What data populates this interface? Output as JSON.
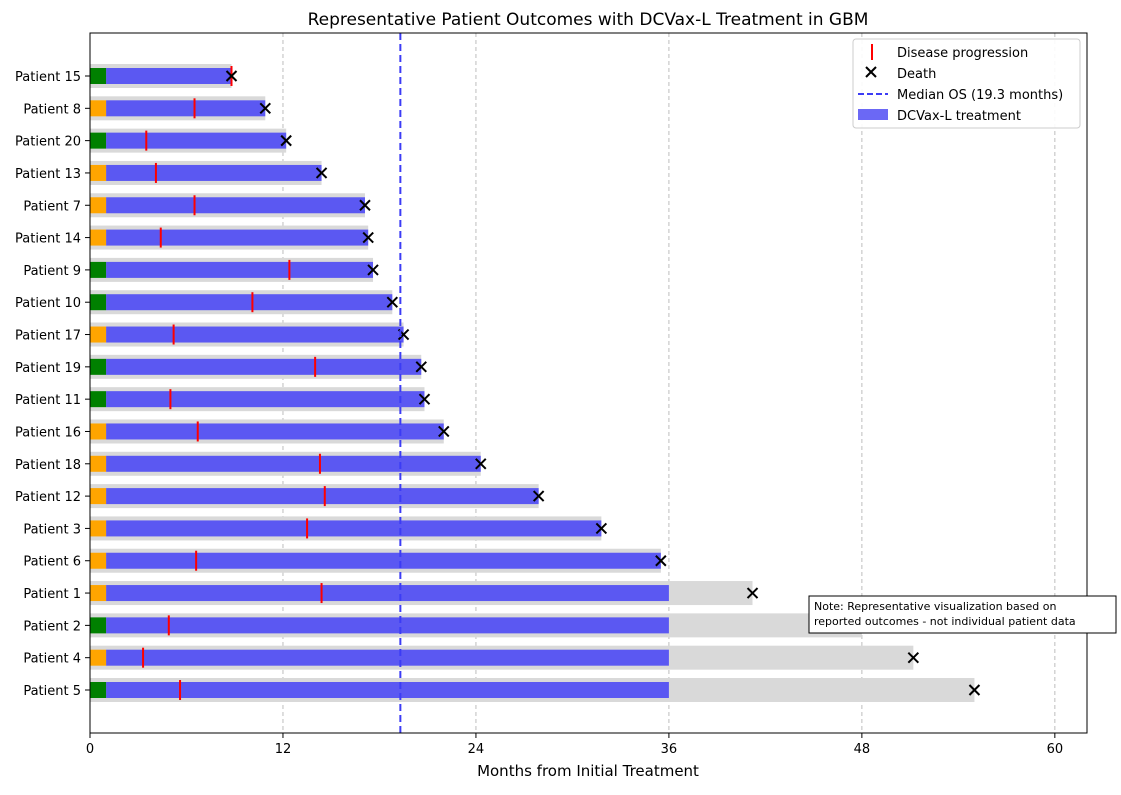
{
  "chart_data": {
    "type": "bar",
    "orientation": "horizontal",
    "title": "Representative Patient Outcomes with DCVax-L Treatment in GBM",
    "xlabel": "Months from Initial Treatment",
    "ylabel": "",
    "xlim": [
      0,
      62
    ],
    "xticks": [
      0,
      12,
      24,
      36,
      48,
      60
    ],
    "grid": "x-dashed",
    "legend_position": "top-right",
    "legend": {
      "progression": "Disease progression",
      "death": "Death",
      "median": "Median OS (19.3 months)",
      "treatment": "DCVax-L treatment"
    },
    "median_os": 19.3,
    "treatment_cap": 36,
    "initial_marker_length": 1,
    "colors": {
      "treatment": "#5b58f2",
      "survival_background": "#d9d9d9",
      "progression": "#ff0000",
      "death": "#000000",
      "median_line": "#3c3cf5",
      "marker_green": "#008000",
      "marker_orange": "#ffa500"
    },
    "note": [
      "Note: Representative visualization based on",
      "reported outcomes - not individual patient data"
    ],
    "patients": [
      {
        "label": "Patient 15",
        "survival": 8.8,
        "progression": 8.8,
        "initial": "green"
      },
      {
        "label": "Patient 8",
        "survival": 10.9,
        "progression": 6.5,
        "initial": "orange"
      },
      {
        "label": "Patient 20",
        "survival": 12.2,
        "progression": 3.5,
        "initial": "green"
      },
      {
        "label": "Patient 13",
        "survival": 14.4,
        "progression": 4.1,
        "initial": "orange"
      },
      {
        "label": "Patient 7",
        "survival": 17.1,
        "progression": 6.5,
        "initial": "orange"
      },
      {
        "label": "Patient 14",
        "survival": 17.3,
        "progression": 4.4,
        "initial": "orange"
      },
      {
        "label": "Patient 9",
        "survival": 17.6,
        "progression": 12.4,
        "initial": "green"
      },
      {
        "label": "Patient 10",
        "survival": 18.8,
        "progression": 10.1,
        "initial": "green"
      },
      {
        "label": "Patient 17",
        "survival": 19.5,
        "progression": 5.2,
        "initial": "orange"
      },
      {
        "label": "Patient 19",
        "survival": 20.6,
        "progression": 14.0,
        "initial": "green"
      },
      {
        "label": "Patient 11",
        "survival": 20.8,
        "progression": 5.0,
        "initial": "green"
      },
      {
        "label": "Patient 16",
        "survival": 22.0,
        "progression": 6.7,
        "initial": "orange"
      },
      {
        "label": "Patient 18",
        "survival": 24.3,
        "progression": 14.3,
        "initial": "orange"
      },
      {
        "label": "Patient 12",
        "survival": 27.9,
        "progression": 14.6,
        "initial": "orange"
      },
      {
        "label": "Patient 3",
        "survival": 31.8,
        "progression": 13.5,
        "initial": "orange"
      },
      {
        "label": "Patient 6",
        "survival": 35.5,
        "progression": 6.6,
        "initial": "orange"
      },
      {
        "label": "Patient 1",
        "survival": 41.2,
        "progression": 14.4,
        "initial": "orange"
      },
      {
        "label": "Patient 2",
        "survival": 48.0,
        "progression": 4.9,
        "initial": "green"
      },
      {
        "label": "Patient 4",
        "survival": 51.2,
        "progression": 3.3,
        "initial": "orange"
      },
      {
        "label": "Patient 5",
        "survival": 55.0,
        "progression": 5.6,
        "initial": "green"
      }
    ]
  }
}
